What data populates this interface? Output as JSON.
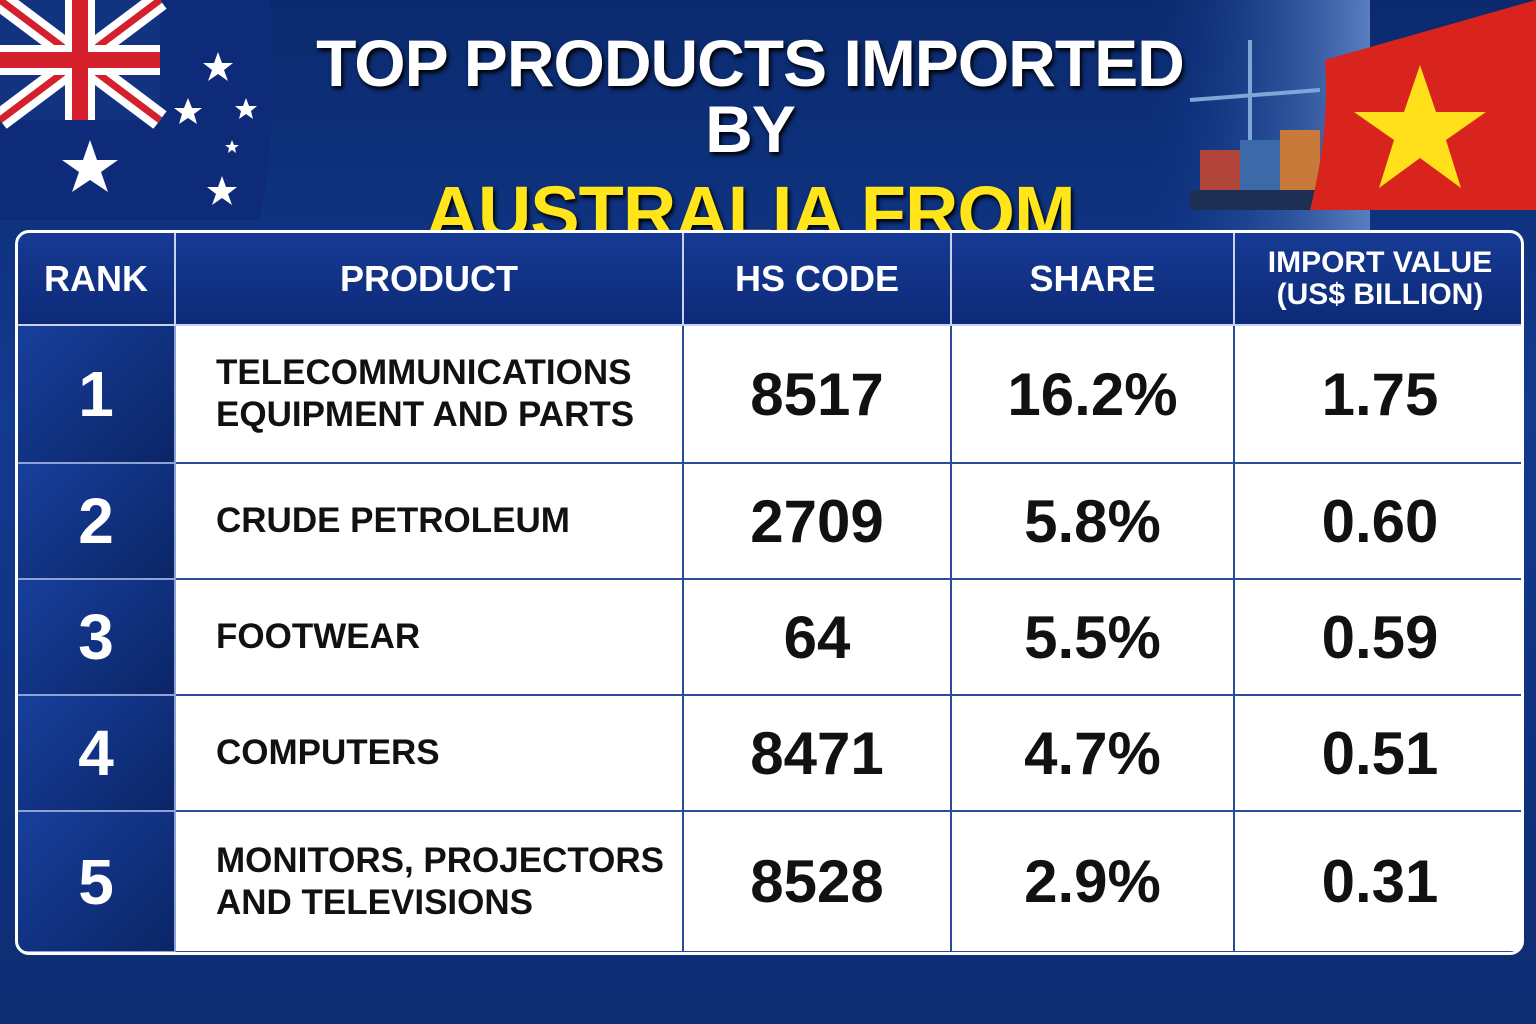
{
  "header": {
    "title_line1": "TOP PRODUCTS IMPORTED BY",
    "title_line2": "AUSTRALIA FROM VIETNAM"
  },
  "table": {
    "columns": [
      "RANK",
      "PRODUCT",
      "HS CODE",
      "SHARE",
      "IMPORT VALUE\n(US$ BILLION)"
    ],
    "rows": [
      [
        "1",
        "TELECOMMUNICATIONS\nEQUIPMENT AND PARTS",
        "8517",
        "16.2%",
        "1.75"
      ],
      [
        "2",
        "CRUDE PETROLEUM",
        "2709",
        "5.8%",
        "0.60"
      ],
      [
        "3",
        "FOOTWEAR",
        "64",
        "5.5%",
        "0.59"
      ],
      [
        "4",
        "COMPUTERS",
        "8471",
        "4.7%",
        "0.51"
      ],
      [
        "5",
        "MONITORS, PROJECTORS\nAND TELEVISIONS",
        "8528",
        "2.9%",
        "0.31"
      ]
    ]
  }
}
